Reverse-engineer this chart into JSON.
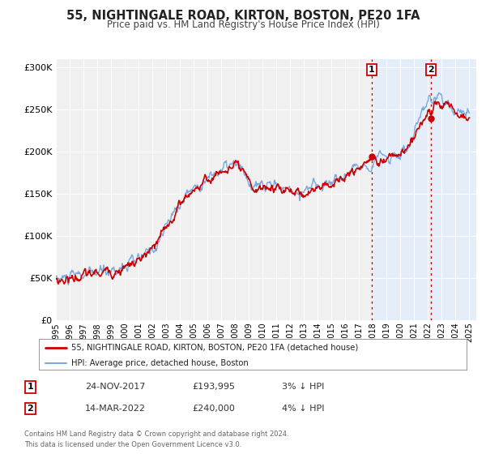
{
  "title": "55, NIGHTINGALE ROAD, KIRTON, BOSTON, PE20 1FA",
  "subtitle": "Price paid vs. HM Land Registry's House Price Index (HPI)",
  "legend_line1": "55, NIGHTINGALE ROAD, KIRTON, BOSTON, PE20 1FA (detached house)",
  "legend_line2": "HPI: Average price, detached house, Boston",
  "marker1_date": "24-NOV-2017",
  "marker1_price": 193995,
  "marker1_note": "3% ↓ HPI",
  "marker2_date": "14-MAR-2022",
  "marker2_price": 240000,
  "marker2_note": "4% ↓ HPI",
  "footnote": "Contains HM Land Registry data © Crown copyright and database right 2024.\nThis data is licensed under the Open Government Licence v3.0.",
  "hpi_color": "#7aaadd",
  "price_color": "#cc0000",
  "marker_color": "#cc0000",
  "bg_color": "#ffffff",
  "plot_bg_color": "#f0f0f0",
  "ylim": [
    0,
    310000
  ],
  "xlim_start": 1995.0,
  "xlim_end": 2025.5,
  "marker1_x": 2017.9,
  "marker2_x": 2022.2,
  "shade_color": "#ddeeff",
  "grid_color": "#ffffff"
}
